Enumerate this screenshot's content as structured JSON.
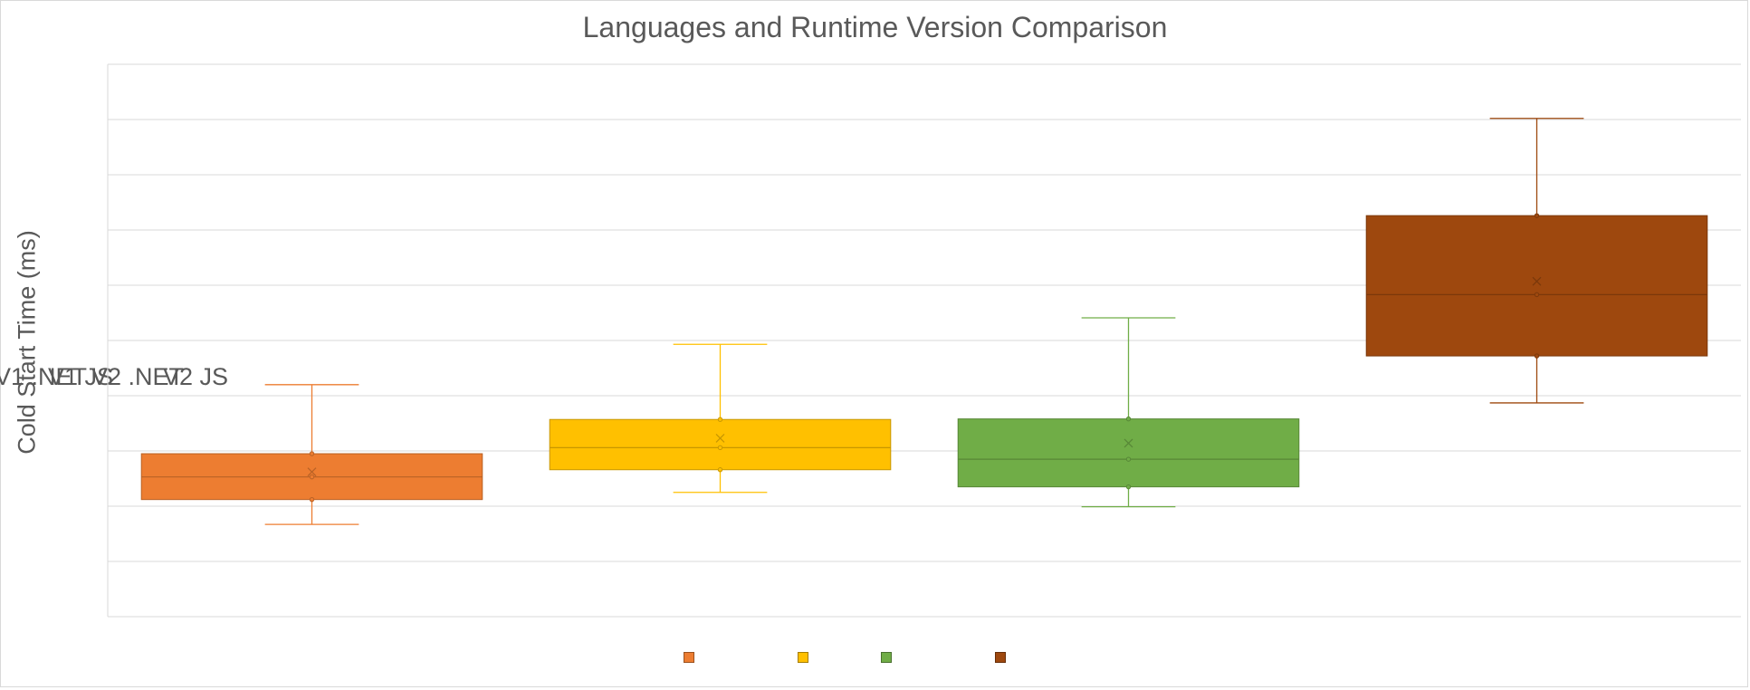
{
  "chart_data": {
    "type": "box",
    "title": "Languages and Runtime Version Comparison",
    "ylabel": "Cold Start Time (ms)",
    "xlabel": "",
    "categories": [
      "V1 .NET",
      "V1 JS",
      "V2 .NET",
      "V2 JS"
    ],
    "ylim": [
      0,
      10
    ],
    "y_ticks_labeled": false,
    "grid": true,
    "legend": "bottom",
    "series": [
      {
        "name": "V1 .NET",
        "color": "#ED7D31",
        "min": 1.67,
        "q1": 2.12,
        "median": 2.53,
        "mean": 2.62,
        "q3": 2.95,
        "max": 4.2
      },
      {
        "name": "V1 JS",
        "color": "#FFC000",
        "min": 2.25,
        "q1": 2.66,
        "median": 3.06,
        "mean": 3.23,
        "q3": 3.57,
        "max": 4.93
      },
      {
        "name": "V2 .NET",
        "color": "#70AD47",
        "min": 1.99,
        "q1": 2.35,
        "median": 2.85,
        "mean": 3.14,
        "q3": 3.58,
        "max": 5.41
      },
      {
        "name": "V2 JS",
        "color": "#9E480E",
        "min": 3.87,
        "q1": 4.72,
        "median": 5.83,
        "mean": 6.07,
        "q3": 7.26,
        "max": 9.02
      }
    ]
  }
}
